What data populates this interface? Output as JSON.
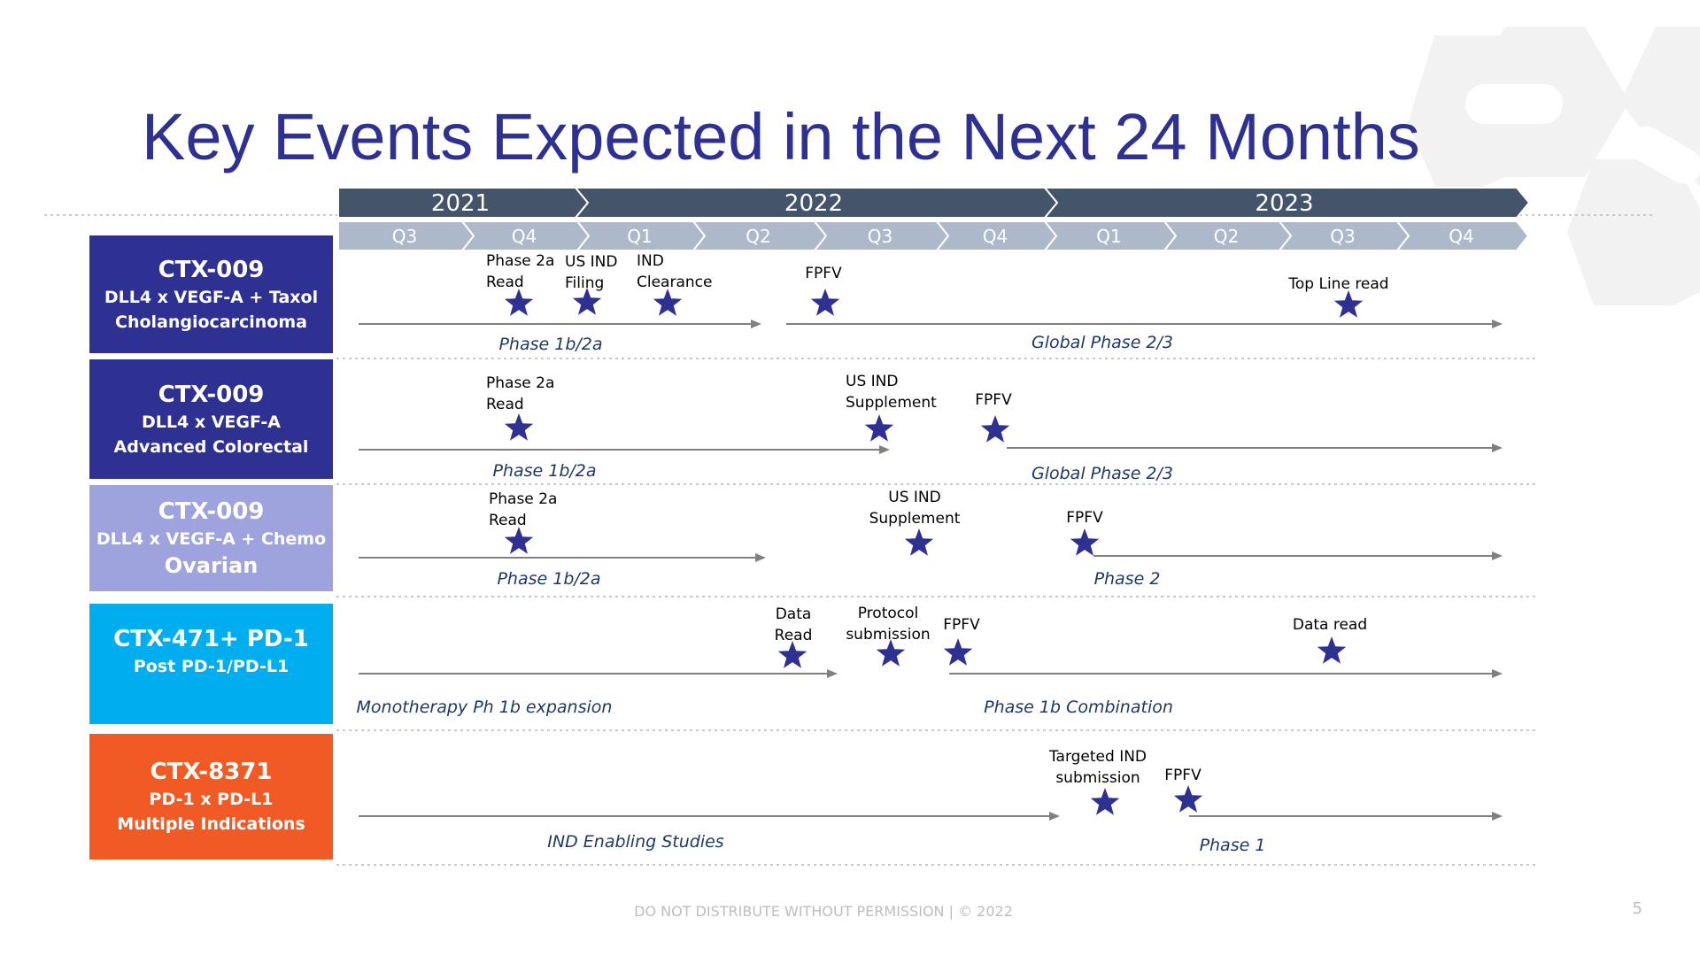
{
  "title": "Key Events Expected in the Next 24 Months",
  "years": [
    "2021",
    "2022",
    "2023"
  ],
  "quarters": [
    "Q3",
    "Q4",
    "Q1",
    "Q2",
    "Q3",
    "Q4",
    "Q1",
    "Q2",
    "Q3",
    "Q4"
  ],
  "programs": [
    {
      "name": "CTX-009",
      "desc1": "DLL4 x VEGF-A + Taxol",
      "desc2": "Cholangiocarcinoma",
      "color": "#2e3192",
      "events": [
        {
          "lines": [
            "Phase 2a",
            "Read"
          ]
        },
        {
          "lines": [
            "US IND",
            "Filing"
          ]
        },
        {
          "lines": [
            "IND",
            "Clearance"
          ]
        },
        {
          "lines": [
            "FPFV"
          ]
        },
        {
          "lines": [
            "Top Line read"
          ]
        }
      ],
      "phases": [
        {
          "label": "Phase 1b/2a"
        },
        {
          "label": "Global Phase 2/3"
        }
      ]
    },
    {
      "name": "CTX-009",
      "desc1": "DLL4 x VEGF-A",
      "desc2": "Advanced Colorectal",
      "color": "#2e3192",
      "events": [
        {
          "lines": [
            "Phase 2a",
            "Read"
          ]
        },
        {
          "lines": [
            "US IND",
            "Supplement"
          ]
        },
        {
          "lines": [
            "FPFV"
          ]
        }
      ],
      "phases": [
        {
          "label": "Phase 1b/2a"
        },
        {
          "label": "Global Phase 2/3"
        }
      ]
    },
    {
      "name": "CTX-009",
      "desc1": "DLL4 x VEGF-A + Chemo",
      "desc2": "Ovarian",
      "color": "#9fa3dd",
      "events": [
        {
          "lines": [
            "Phase 2a",
            "Read"
          ]
        },
        {
          "lines": [
            "US IND",
            "Supplement"
          ]
        },
        {
          "lines": [
            "FPFV"
          ]
        }
      ],
      "phases": [
        {
          "label": "Phase 1b/2a"
        },
        {
          "label": "Phase 2"
        }
      ]
    },
    {
      "name": "CTX-471+ PD-1",
      "desc1": "Post PD-1/PD-L1",
      "desc2": "",
      "color": "#00aeef",
      "events": [
        {
          "lines": [
            "Data",
            "Read"
          ]
        },
        {
          "lines": [
            "Protocol",
            "submission"
          ]
        },
        {
          "lines": [
            "FPFV"
          ]
        },
        {
          "lines": [
            "Data read"
          ]
        }
      ],
      "phases": [
        {
          "label": "Monotherapy Ph 1b expansion"
        },
        {
          "label": "Phase 1b Combination"
        }
      ]
    },
    {
      "name": "CTX-8371",
      "desc1": "PD-1 x PD-L1",
      "desc2": "Multiple Indications",
      "color": "#f15a24",
      "events": [
        {
          "lines": [
            "Targeted IND",
            "submission"
          ]
        },
        {
          "lines": [
            "FPFV"
          ]
        }
      ],
      "phases": [
        {
          "label": "IND Enabling Studies"
        },
        {
          "label": "Phase 1"
        }
      ]
    }
  ],
  "footer": "DO NOT DISTRIBUTE WITHOUT PERMISSION | © 2022",
  "page_number": "5",
  "colors": {
    "title": "#2e3192",
    "year_band": "#44546a",
    "quarter_band": "#adb9ca",
    "star": "#2e3192",
    "arrow": "#808080",
    "phase_label": "#1f3864"
  }
}
